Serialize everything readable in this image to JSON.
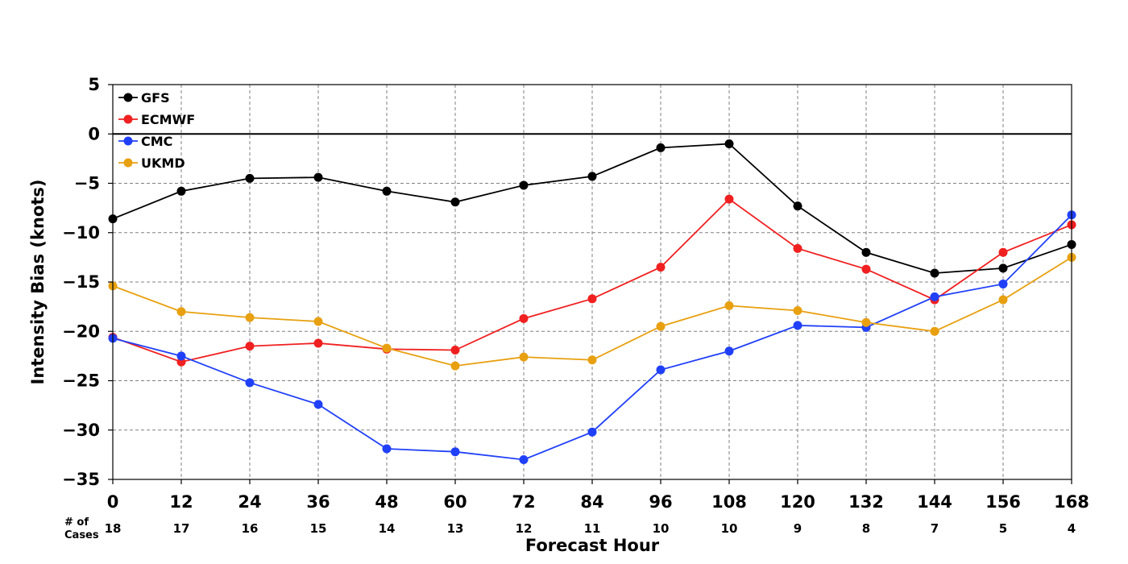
{
  "chart_data": {
    "type": "line",
    "title": "",
    "xlabel": "Forecast Hour",
    "ylabel": "Intensity Bias (knots)",
    "xlim": [
      0,
      168
    ],
    "ylim": [
      -35,
      5
    ],
    "x_ticks": [
      0,
      12,
      24,
      36,
      48,
      60,
      72,
      84,
      96,
      108,
      120,
      132,
      144,
      156,
      168
    ],
    "y_ticks": [
      5,
      0,
      -5,
      -10,
      -15,
      -20,
      -25,
      -30,
      -35
    ],
    "grid": true,
    "legend_position": "top-left",
    "cases_title": "# of\nCases",
    "cases": [
      18,
      17,
      16,
      15,
      14,
      13,
      12,
      11,
      10,
      10,
      9,
      8,
      7,
      5,
      4
    ],
    "x": [
      0,
      12,
      24,
      36,
      48,
      60,
      72,
      84,
      96,
      108,
      120,
      132,
      144,
      156,
      168
    ],
    "series": [
      {
        "name": "GFS",
        "color": "#000000",
        "values": [
          -8.6,
          -5.8,
          -4.5,
          -4.4,
          -5.8,
          -6.9,
          -5.2,
          -4.3,
          -1.4,
          -1.0,
          -7.3,
          -12.0,
          -14.1,
          -13.6,
          -11.2
        ]
      },
      {
        "name": "ECMWF",
        "color": "#f02020",
        "values": [
          -20.6,
          -23.1,
          -21.5,
          -21.2,
          -21.8,
          -21.9,
          -18.7,
          -16.7,
          -13.5,
          -6.6,
          -11.6,
          -13.7,
          -16.8,
          -12.0,
          -9.2
        ]
      },
      {
        "name": "CMC",
        "color": "#2040f8",
        "values": [
          -20.7,
          -22.5,
          -25.2,
          -27.4,
          -31.9,
          -32.2,
          -33.0,
          -30.2,
          -23.9,
          -22.0,
          -19.4,
          -19.6,
          -16.5,
          -15.2,
          -8.2
        ]
      },
      {
        "name": "UKMD",
        "color": "#e8a010",
        "values": [
          -15.4,
          -18.0,
          -18.6,
          -19.0,
          -21.7,
          -23.5,
          -22.6,
          -22.9,
          -19.5,
          -17.4,
          -17.9,
          -19.1,
          -20.0,
          -16.8,
          -12.5
        ]
      }
    ]
  }
}
